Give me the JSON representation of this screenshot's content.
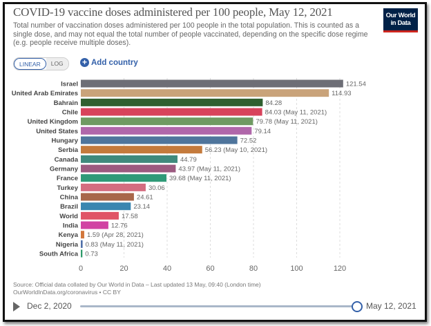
{
  "header": {
    "title": "COVID-19 vaccine doses administered per 100 people, May 12, 2021",
    "subtitle": "Total number of vaccination doses administered per 100 people in the total population. This is counted as a single dose, and may not equal the total number of people vaccinated, depending on the specific dose regime (e.g. people receive multiple doses).",
    "logo": "Our World in Data"
  },
  "controls": {
    "linear": "LINEAR",
    "log": "LOG",
    "scale_selected": "linear",
    "add_country": "Add country"
  },
  "chart_data": {
    "type": "bar",
    "orientation": "horizontal",
    "categories": [
      "Israel",
      "United Arab Emirates",
      "Bahrain",
      "Chile",
      "United Kingdom",
      "United States",
      "Hungary",
      "Serbia",
      "Canada",
      "Germany",
      "France",
      "Turkey",
      "China",
      "Brazil",
      "World",
      "India",
      "Kenya",
      "Nigeria",
      "South Africa"
    ],
    "values": [
      121.54,
      114.93,
      84.28,
      84.03,
      79.78,
      79.14,
      72.52,
      56.23,
      44.79,
      43.97,
      39.68,
      30.06,
      24.61,
      23.14,
      17.58,
      12.76,
      1.59,
      0.83,
      0.73
    ],
    "value_labels": [
      "121.54",
      "114.93",
      "84.28",
      "84.03 (May 11, 2021)",
      "79.78 (May 11, 2021)",
      "79.14",
      "72.52",
      "56.23 (May 10, 2021)",
      "44.79",
      "43.97 (May 11, 2021)",
      "39.68 (May 11, 2021)",
      "30.06",
      "24.61",
      "23.14",
      "17.58",
      "12.76",
      "1.59 (Apr 28, 2021)",
      "0.83 (May 11, 2021)",
      "0.73"
    ],
    "colors": [
      "#6d6e76",
      "#c9a37a",
      "#2f5f2f",
      "#d8435b",
      "#6f9a62",
      "#b067aa",
      "#4f759c",
      "#c47a3c",
      "#3f8a7d",
      "#9c5a80",
      "#2f9a78",
      "#d46d80",
      "#a8674a",
      "#3a86b0",
      "#e05466",
      "#d143a3",
      "#d2773c",
      "#4f6fa8",
      "#2e9b6a"
    ],
    "xlim": [
      0,
      125
    ],
    "xticks": [
      "0",
      "20",
      "40",
      "60",
      "80",
      "100",
      "120"
    ],
    "grid": true
  },
  "footer": {
    "source": "Source: Official data collated by Our World in Data – Last updated 13 May, 09:40 (London time)",
    "link": "OurWorldInData.org/coronavirus • CC BY"
  },
  "timeline": {
    "start": "Dec 2, 2020",
    "end": "May 12, 2021",
    "position": 1.0
  }
}
